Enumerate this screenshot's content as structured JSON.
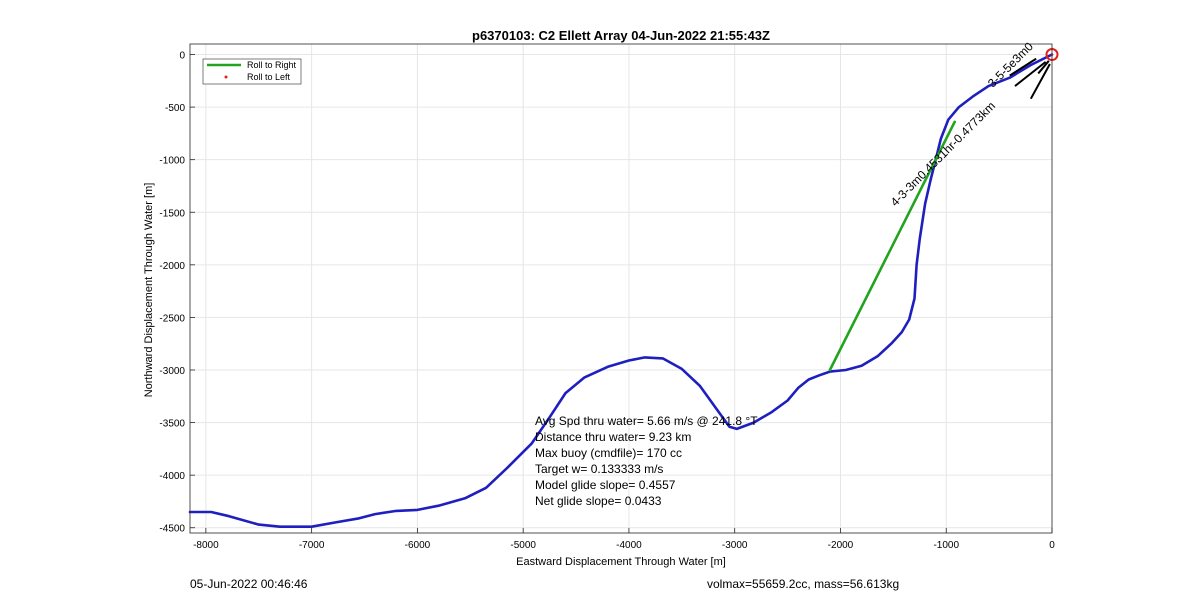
{
  "chart_data": {
    "type": "line",
    "title": "p6370103: C2 Ellett Array 04-Jun-2022 21:55:43Z",
    "xlabel": "Eastward Displacement Through Water [m]",
    "ylabel": "Northward Displacement Through Water [m]",
    "xlim": [
      -8150,
      0
    ],
    "ylim": [
      -4550,
      100
    ],
    "xticks": [
      -8000,
      -7000,
      -6000,
      -5000,
      -4000,
      -3000,
      -2000,
      -1000,
      0
    ],
    "yticks": [
      0,
      -500,
      -1000,
      -1500,
      -2000,
      -2500,
      -3000,
      -3500,
      -4000,
      -4500
    ],
    "grid": true,
    "legend": {
      "placement": "top-left",
      "entries": [
        {
          "label": "Roll to Right",
          "color": "#22a41e",
          "marker": "line"
        },
        {
          "label": "Roll to Left",
          "color": "#e02020",
          "marker": "dot"
        }
      ]
    },
    "series": [
      {
        "color": "#1f1fbf",
        "points": [
          [
            -8150,
            -4350
          ],
          [
            -7950,
            -4350
          ],
          [
            -7780,
            -4390
          ],
          [
            -7500,
            -4470
          ],
          [
            -7300,
            -4490
          ],
          [
            -7000,
            -4490
          ],
          [
            -6780,
            -4450
          ],
          [
            -6550,
            -4410
          ],
          [
            -6400,
            -4370
          ],
          [
            -6200,
            -4340
          ],
          [
            -6000,
            -4330
          ],
          [
            -5800,
            -4290
          ],
          [
            -5550,
            -4220
          ],
          [
            -5350,
            -4120
          ],
          [
            -5150,
            -3930
          ],
          [
            -4920,
            -3700
          ],
          [
            -4750,
            -3450
          ],
          [
            -4600,
            -3220
          ],
          [
            -4420,
            -3070
          ],
          [
            -4200,
            -2970
          ],
          [
            -4000,
            -2910
          ],
          [
            -3850,
            -2880
          ],
          [
            -3680,
            -2890
          ],
          [
            -3500,
            -2990
          ],
          [
            -3330,
            -3150
          ],
          [
            -3150,
            -3400
          ],
          [
            -3050,
            -3540
          ],
          [
            -2980,
            -3560
          ],
          [
            -2820,
            -3500
          ],
          [
            -2650,
            -3400
          ],
          [
            -2500,
            -3290
          ],
          [
            -2400,
            -3170
          ],
          [
            -2300,
            -3090
          ],
          [
            -2200,
            -3050
          ],
          [
            -2100,
            -3015
          ],
          [
            -1950,
            -3000
          ],
          [
            -1800,
            -2960
          ],
          [
            -1650,
            -2870
          ],
          [
            -1520,
            -2750
          ],
          [
            -1420,
            -2640
          ],
          [
            -1350,
            -2520
          ],
          [
            -1300,
            -2320
          ],
          [
            -1280,
            -2000
          ],
          [
            -1250,
            -1750
          ],
          [
            -1200,
            -1420
          ],
          [
            -1150,
            -1200
          ],
          [
            -1100,
            -1000
          ],
          [
            -1050,
            -800
          ],
          [
            -980,
            -620
          ],
          [
            -880,
            -500
          ],
          [
            -750,
            -400
          ],
          [
            -600,
            -300
          ],
          [
            -400,
            -220
          ],
          [
            -200,
            -100
          ],
          [
            0,
            0
          ]
        ]
      },
      {
        "color": "#22a41e",
        "points": [
          [
            -2100,
            -3000
          ],
          [
            -920,
            -640
          ]
        ]
      }
    ],
    "surface_segments": [
      [
        [
          -400,
          -200
        ],
        [
          -150,
          -40
        ]
      ],
      [
        [
          -200,
          -420
        ],
        [
          -20,
          -90
        ]
      ],
      [
        [
          -350,
          -300
        ],
        [
          -60,
          -70
        ]
      ],
      [
        [
          -130,
          -180
        ],
        [
          -30,
          -60
        ]
      ]
    ],
    "marker": {
      "label": "start",
      "x": 0,
      "y": 0,
      "color": "#e02020"
    },
    "rotated_annotations": [
      {
        "text": "4-3-3m0.4531hr-0.4773km",
        "x": -1480,
        "y": -1450,
        "angle_deg": 45
      },
      {
        "text": "3-5-5e3m0",
        "x": -560,
        "y": -320,
        "angle_deg": 45
      }
    ]
  },
  "annotations": [
    "Avg Spd thru water=  5.66 m/s @ 241.8 °T",
    "Distance thru water=  9.23 km",
    "Max buoy (cmdfile)= 170 cc",
    "Target w= 0.133333 m/s",
    "Model glide slope= 0.4557",
    "Net glide slope= 0.0433"
  ],
  "footer": {
    "left": "05-Jun-2022 00:46:46",
    "right": "volmax=55659.2cc, mass=56.613kg"
  },
  "colors": {
    "track": "#1f1fbf",
    "roll_right": "#22a41e",
    "roll_left": "#e02020",
    "grid": "#e6e6e6",
    "axes": "#262626"
  }
}
